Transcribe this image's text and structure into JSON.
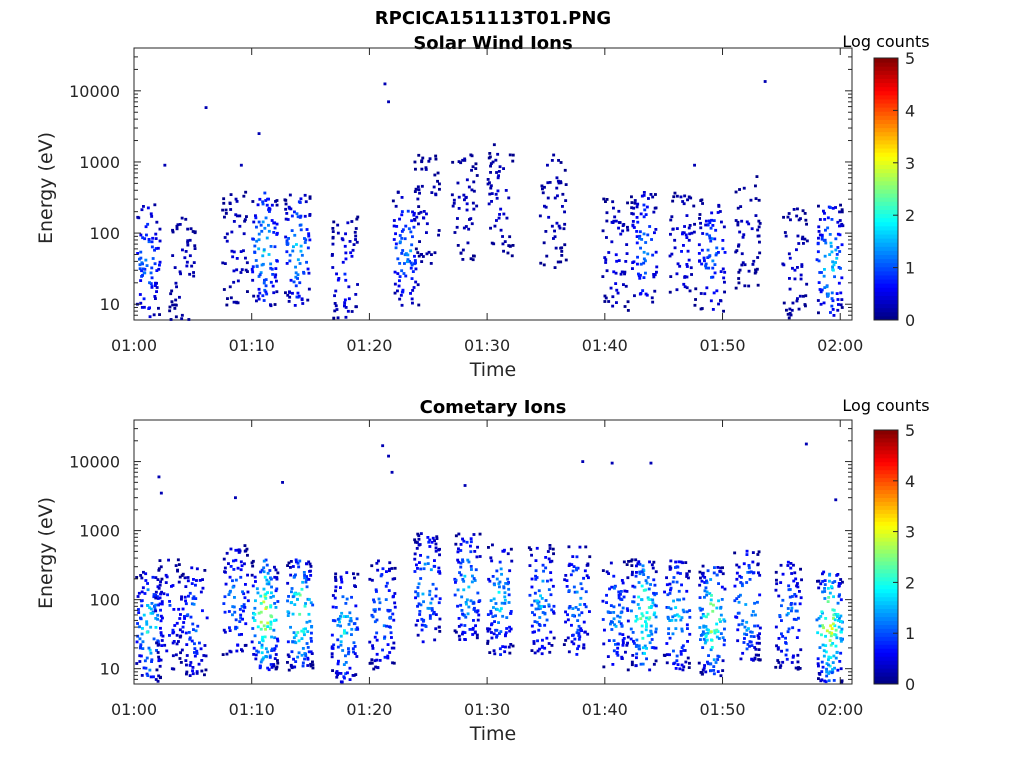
{
  "figure_title": "RPCICA151113T01.PNG",
  "colorbar_label": "Log counts",
  "colorbar_ticks": [
    "0",
    "1",
    "2",
    "3",
    "4",
    "5"
  ],
  "chart_data": [
    {
      "type": "heatmap",
      "title": "Solar Wind Ions",
      "xlabel": "Time",
      "ylabel": "Energy (eV)",
      "x_tick_labels": [
        "01:00",
        "01:10",
        "01:20",
        "01:30",
        "01:40",
        "01:50",
        "02:00"
      ],
      "y_tick_labels": [
        "10",
        "100",
        "1000",
        "10000"
      ],
      "xlim_minutes": [
        0,
        61
      ],
      "ylim_eV": [
        6,
        40000
      ],
      "yscale": "log",
      "clim_log_counts": [
        0,
        5
      ],
      "colormap": "jet",
      "bursts": [
        {
          "t": 1.0,
          "e": 40,
          "peak": 1.6
        },
        {
          "t": 4.0,
          "e": 35,
          "peak": 0.5
        },
        {
          "t": 8.5,
          "e": 60,
          "peak": 0.6
        },
        {
          "t": 11.0,
          "e": 60,
          "peak": 2.3
        },
        {
          "t": 13.8,
          "e": 60,
          "peak": 2.0
        },
        {
          "t": 17.8,
          "e": 30,
          "peak": 1.0
        },
        {
          "t": 23.0,
          "e": 60,
          "peak": 1.8
        },
        {
          "t": 24.8,
          "e": 200,
          "peak": 0.5
        },
        {
          "t": 28.0,
          "e": 250,
          "peak": 0.5
        },
        {
          "t": 31.0,
          "e": 300,
          "peak": 0.6
        },
        {
          "t": 35.5,
          "e": 200,
          "peak": 0.5
        },
        {
          "t": 40.8,
          "e": 50,
          "peak": 0.8
        },
        {
          "t": 43.2,
          "e": 60,
          "peak": 1.6
        },
        {
          "t": 46.5,
          "e": 60,
          "peak": 0.8
        },
        {
          "t": 49.0,
          "e": 50,
          "peak": 1.6
        },
        {
          "t": 52.0,
          "e": 100,
          "peak": 0.5
        },
        {
          "t": 56.0,
          "e": 40,
          "peak": 0.6
        },
        {
          "t": 59.0,
          "e": 40,
          "peak": 2.3
        }
      ],
      "isolated_points": [
        {
          "t": 21.2,
          "e": 12500
        },
        {
          "t": 21.5,
          "e": 7000
        },
        {
          "t": 53.5,
          "e": 13500
        },
        {
          "t": 6.0,
          "e": 5800
        },
        {
          "t": 10.5,
          "e": 2500
        },
        {
          "t": 2.5,
          "e": 900
        },
        {
          "t": 9.0,
          "e": 900
        },
        {
          "t": 35.0,
          "e": 900
        },
        {
          "t": 47.5,
          "e": 900
        }
      ]
    },
    {
      "type": "heatmap",
      "title": "Cometary Ions",
      "xlabel": "Time",
      "ylabel": "Energy (eV)",
      "x_tick_labels": [
        "01:00",
        "01:10",
        "01:20",
        "01:30",
        "01:40",
        "01:50",
        "02:00"
      ],
      "y_tick_labels": [
        "10",
        "100",
        "1000",
        "10000"
      ],
      "xlim_minutes": [
        0,
        61
      ],
      "ylim_eV": [
        6,
        40000
      ],
      "yscale": "log",
      "clim_log_counts": [
        0,
        5
      ],
      "colormap": "jet",
      "bursts": [
        {
          "t": 1.2,
          "e": 40,
          "peak": 2.5
        },
        {
          "t": 2.8,
          "e": 60,
          "peak": 1.2
        },
        {
          "t": 5.0,
          "e": 50,
          "peak": 1.6
        },
        {
          "t": 8.5,
          "e": 100,
          "peak": 1.8
        },
        {
          "t": 11.0,
          "e": 60,
          "peak": 3.6
        },
        {
          "t": 14.0,
          "e": 60,
          "peak": 3.3
        },
        {
          "t": 17.8,
          "e": 40,
          "peak": 2.3
        },
        {
          "t": 21.0,
          "e": 60,
          "peak": 1.8
        },
        {
          "t": 24.8,
          "e": 150,
          "peak": 2.2
        },
        {
          "t": 28.2,
          "e": 150,
          "peak": 2.3
        },
        {
          "t": 31.0,
          "e": 100,
          "peak": 2.2
        },
        {
          "t": 34.5,
          "e": 100,
          "peak": 2.0
        },
        {
          "t": 37.5,
          "e": 100,
          "peak": 1.8
        },
        {
          "t": 40.8,
          "e": 60,
          "peak": 1.8
        },
        {
          "t": 43.2,
          "e": 60,
          "peak": 3.3
        },
        {
          "t": 46.0,
          "e": 60,
          "peak": 2.2
        },
        {
          "t": 49.0,
          "e": 50,
          "peak": 3.3
        },
        {
          "t": 52.0,
          "e": 80,
          "peak": 2.2
        },
        {
          "t": 55.5,
          "e": 60,
          "peak": 1.8
        },
        {
          "t": 59.0,
          "e": 40,
          "peak": 3.8
        }
      ],
      "isolated_points": [
        {
          "t": 21.0,
          "e": 17000
        },
        {
          "t": 21.5,
          "e": 12000
        },
        {
          "t": 21.8,
          "e": 7000
        },
        {
          "t": 38.0,
          "e": 10000
        },
        {
          "t": 40.5,
          "e": 9500
        },
        {
          "t": 43.8,
          "e": 9500
        },
        {
          "t": 57.0,
          "e": 18000
        },
        {
          "t": 59.5,
          "e": 2800
        },
        {
          "t": 2.0,
          "e": 6000
        },
        {
          "t": 2.2,
          "e": 3500
        },
        {
          "t": 12.5,
          "e": 5000
        },
        {
          "t": 8.5,
          "e": 3000
        },
        {
          "t": 28.0,
          "e": 4500
        }
      ]
    }
  ]
}
